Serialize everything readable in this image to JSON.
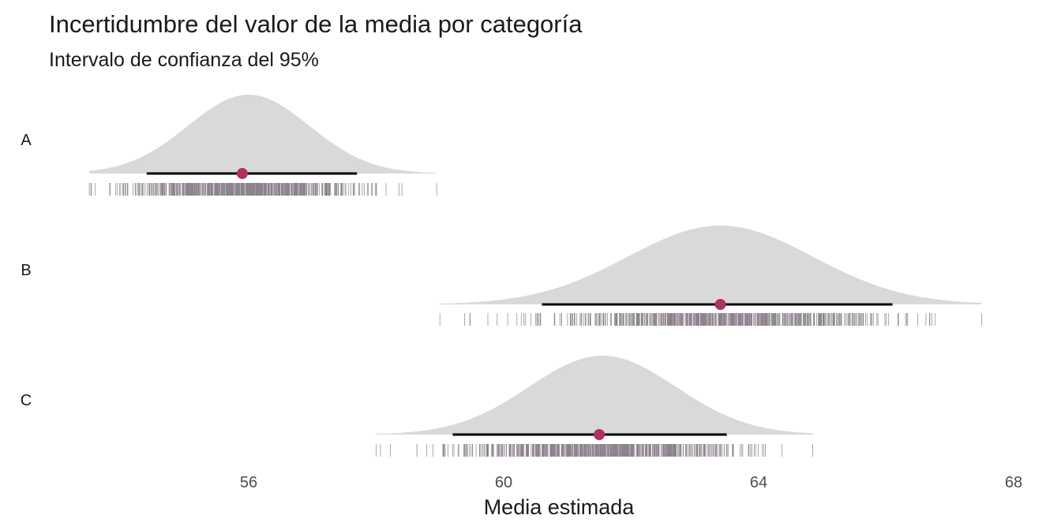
{
  "chart_data": {
    "type": "halfeye",
    "title": "Incertidumbre del valor de la media por categoría",
    "subtitle": "Intervalo de confianza del 95%",
    "xlabel": "Media estimada",
    "ylabel": "",
    "xlim": [
      52.6,
      68
    ],
    "xticks": [
      56,
      60,
      64,
      68
    ],
    "xtick_labels": [
      "56",
      "60",
      "64",
      "68"
    ],
    "grid": false,
    "colors": {
      "density_fill": "#d9d9d9",
      "point": "#b03060",
      "interval": "#000000",
      "rug": "#2d1e2f"
    },
    "categories": [
      {
        "label": "A",
        "mean": 55.9,
        "ci": [
          54.4,
          57.7
        ],
        "range": [
          53.5,
          58.95
        ],
        "sd": 0.95,
        "peak": 56.0
      },
      {
        "label": "B",
        "mean": 63.4,
        "ci": [
          60.6,
          66.1
        ],
        "range": [
          59.0,
          67.5
        ],
        "sd": 1.45,
        "peak": 63.4
      },
      {
        "label": "C",
        "mean": 61.5,
        "ci": [
          59.2,
          63.5
        ],
        "range": [
          58.0,
          64.85
        ],
        "sd": 1.15,
        "peak": 61.55
      }
    ]
  }
}
